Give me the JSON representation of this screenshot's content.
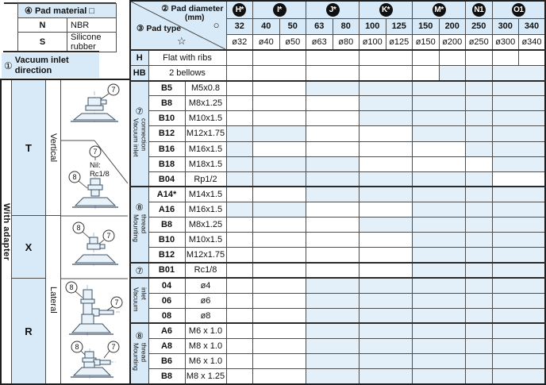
{
  "colors": {
    "header_bg": "#d8eaf7",
    "shaded_bg": "#e3f0f9",
    "dot": "#141414",
    "badge_bg": "#101010"
  },
  "pad_material": {
    "circled": "④",
    "title": "Pad material",
    "symbol": "□",
    "rows": [
      {
        "code": "N",
        "label": "NBR"
      },
      {
        "code": "S",
        "label": "Silicone rubber"
      }
    ]
  },
  "inlet_direction": {
    "circled": "①",
    "line1": "Vacuum inlet",
    "line2": "direction"
  },
  "header": {
    "diameter_circled": "②",
    "diameter_label": "Pad diameter",
    "diameter_unit": "(mm)",
    "diameter_symbol": "○",
    "type_circled": "③",
    "type_label": "Pad type",
    "type_symbol": "☆",
    "groups": [
      {
        "badge": "H*",
        "span": 1
      },
      {
        "badge": "I*",
        "span": 2
      },
      {
        "badge": "J*",
        "span": 2
      },
      {
        "badge": "K*",
        "span": 2
      },
      {
        "badge": "M*",
        "span": 2
      },
      {
        "badge": "N1",
        "span": 1
      },
      {
        "badge": "O1",
        "span": 2
      }
    ],
    "sizes": [
      "32",
      "40",
      "50",
      "63",
      "80",
      "100",
      "125",
      "150",
      "200",
      "250",
      "300",
      "340"
    ],
    "diameters": [
      "ø32",
      "ø40",
      "ø50",
      "ø63",
      "ø80",
      "ø100",
      "ø125",
      "ø150",
      "ø200",
      "ø250",
      "ø300",
      "ø340"
    ]
  },
  "pad_type_rows": [
    {
      "code": "H",
      "label": "Flat with ribs",
      "cells": [
        [
          1,
          "dot"
        ],
        [
          2,
          "dot"
        ],
        [
          2,
          "dot"
        ],
        [
          2,
          "dot"
        ],
        [
          1,
          "dot"
        ],
        [
          1,
          "dot"
        ],
        [
          1,
          "dot"
        ],
        [
          1,
          "dot"
        ],
        [
          1,
          "dot"
        ]
      ]
    },
    {
      "code": "HB",
      "label": "2 bellows",
      "cells": [
        [
          1,
          "dot"
        ],
        [
          2,
          "dot"
        ],
        [
          2,
          "dot"
        ],
        [
          2,
          "dot"
        ],
        [
          1,
          "dot"
        ],
        [
          1,
          "off"
        ],
        [
          1,
          "off"
        ],
        [
          2,
          "off"
        ]
      ]
    }
  ],
  "sections": [
    {
      "circled": "⑦",
      "label": "Vacuum inlet connection",
      "rows": [
        {
          "code": "B5",
          "spec": "M5x0.8",
          "cells": [
            [
              1,
              "dot"
            ],
            [
              2,
              "dot"
            ],
            [
              2,
              "off"
            ],
            [
              2,
              "off"
            ],
            [
              2,
              "off"
            ],
            [
              1,
              "off"
            ],
            [
              2,
              "off"
            ]
          ]
        },
        {
          "code": "B8",
          "spec": "M8x1.25",
          "cells": [
            [
              1,
              "dot"
            ],
            [
              2,
              "dot"
            ],
            [
              2,
              "dot"
            ],
            [
              2,
              "off"
            ],
            [
              2,
              "off"
            ],
            [
              1,
              "off"
            ],
            [
              2,
              "off"
            ]
          ]
        },
        {
          "code": "B10",
          "spec": "M10x1.5",
          "cells": [
            [
              1,
              "dot"
            ],
            [
              2,
              "dot"
            ],
            [
              2,
              "dot"
            ],
            [
              2,
              "off"
            ],
            [
              2,
              "off"
            ],
            [
              1,
              "off"
            ],
            [
              2,
              "off"
            ]
          ]
        },
        {
          "code": "B12",
          "spec": "M12x1.75",
          "cells": [
            [
              1,
              "off"
            ],
            [
              2,
              "off"
            ],
            [
              2,
              "dot"
            ],
            [
              2,
              "dot"
            ],
            [
              2,
              "off"
            ],
            [
              1,
              "off"
            ],
            [
              2,
              "off"
            ]
          ]
        },
        {
          "code": "B16",
          "spec": "M16x1.5",
          "cells": [
            [
              1,
              "off"
            ],
            [
              2,
              "dot"
            ],
            [
              2,
              "dot"
            ],
            [
              2,
              "dot"
            ],
            [
              2,
              "dot"
            ],
            [
              1,
              "off"
            ],
            [
              2,
              "off"
            ]
          ]
        },
        {
          "code": "B18",
          "spec": "M18x1.5",
          "cells": [
            [
              1,
              "off"
            ],
            [
              2,
              "off"
            ],
            [
              2,
              "off"
            ],
            [
              2,
              "dot"
            ],
            [
              2,
              "dot"
            ],
            [
              1,
              "dot"
            ],
            [
              2,
              "off"
            ]
          ]
        },
        {
          "code": "B04",
          "spec": "Rp1/2",
          "cells": [
            [
              1,
              "off"
            ],
            [
              2,
              "off"
            ],
            [
              2,
              "off"
            ],
            [
              2,
              "off"
            ],
            [
              2,
              "off"
            ],
            [
              1,
              "off"
            ],
            [
              2,
              "dot"
            ]
          ]
        }
      ]
    },
    {
      "circled": "⑧",
      "label": "Mounting thread",
      "rows": [
        {
          "code": "A14*",
          "spec": "M14x1.5",
          "cells": [
            [
              1,
              "dot"
            ],
            [
              2,
              "dot"
            ],
            [
              2,
              "off"
            ],
            [
              2,
              "off"
            ],
            [
              2,
              "off"
            ],
            [
              1,
              "off"
            ],
            [
              2,
              "off"
            ]
          ]
        },
        {
          "code": "A16",
          "spec": "M16x1.5",
          "cells": [
            [
              1,
              "off"
            ],
            [
              2,
              "off"
            ],
            [
              2,
              "dot"
            ],
            [
              2,
              "dot"
            ],
            [
              2,
              "off"
            ],
            [
              1,
              "off"
            ],
            [
              2,
              "off"
            ]
          ]
        },
        {
          "code": "B8",
          "spec": "M8x1.25",
          "cells": [
            [
              1,
              "dot"
            ],
            [
              2,
              "dot"
            ],
            [
              2,
              "dot"
            ],
            [
              2,
              "off"
            ],
            [
              2,
              "off"
            ],
            [
              1,
              "off"
            ],
            [
              2,
              "off"
            ]
          ]
        },
        {
          "code": "B10",
          "spec": "M10x1.5",
          "cells": [
            [
              1,
              "dot"
            ],
            [
              2,
              "dot"
            ],
            [
              2,
              "dot"
            ],
            [
              2,
              "dot"
            ],
            [
              2,
              "off"
            ],
            [
              1,
              "off"
            ],
            [
              2,
              "off"
            ]
          ]
        },
        {
          "code": "B12",
          "spec": "M12x1.75",
          "cells": [
            [
              1,
              "dot"
            ],
            [
              2,
              "dot"
            ],
            [
              2,
              "dot"
            ],
            [
              2,
              "dot"
            ],
            [
              2,
              "off"
            ],
            [
              1,
              "off"
            ],
            [
              2,
              "off"
            ]
          ]
        }
      ]
    },
    {
      "circled": "⑦",
      "label": "",
      "rows": [
        {
          "code": "B01",
          "spec": "Rc1/8",
          "cells": [
            [
              1,
              "dot"
            ],
            [
              2,
              "dot"
            ],
            [
              2,
              "dot"
            ],
            [
              2,
              "dot"
            ],
            [
              2,
              "off"
            ],
            [
              1,
              "off"
            ],
            [
              2,
              "off"
            ]
          ]
        }
      ]
    },
    {
      "circled": "",
      "label": "Vacuum inlet",
      "rows": [
        {
          "code": "04",
          "spec": "ø4",
          "cells": [
            [
              1,
              "dot"
            ],
            [
              2,
              "dot"
            ],
            [
              2,
              "off"
            ],
            [
              2,
              "off"
            ],
            [
              2,
              "off"
            ],
            [
              1,
              "off"
            ],
            [
              2,
              "off"
            ]
          ]
        },
        {
          "code": "06",
          "spec": "ø6",
          "cells": [
            [
              1,
              "dot"
            ],
            [
              2,
              "dot"
            ],
            [
              2,
              "off"
            ],
            [
              2,
              "off"
            ],
            [
              2,
              "off"
            ],
            [
              1,
              "off"
            ],
            [
              2,
              "off"
            ]
          ]
        },
        {
          "code": "08",
          "spec": "ø8",
          "cells": [
            [
              1,
              "dot"
            ],
            [
              2,
              "dot"
            ],
            [
              2,
              "off"
            ],
            [
              2,
              "off"
            ],
            [
              2,
              "off"
            ],
            [
              1,
              "off"
            ],
            [
              2,
              "off"
            ]
          ]
        }
      ]
    },
    {
      "circled": "⑧",
      "label": "Mounting thread",
      "rows": [
        {
          "code": "A6",
          "spec": "M6 x 1.0",
          "cells": [
            [
              1,
              "dot"
            ],
            [
              2,
              "dot"
            ],
            [
              2,
              "off"
            ],
            [
              2,
              "off"
            ],
            [
              2,
              "off"
            ],
            [
              1,
              "off"
            ],
            [
              2,
              "off"
            ]
          ]
        },
        {
          "code": "A8",
          "spec": "M8 x 1.0",
          "cells": [
            [
              1,
              "dot"
            ],
            [
              2,
              "dot"
            ],
            [
              2,
              "off"
            ],
            [
              2,
              "off"
            ],
            [
              2,
              "off"
            ],
            [
              1,
              "off"
            ],
            [
              2,
              "off"
            ]
          ]
        },
        {
          "code": "B6",
          "spec": "M6 x 1.0",
          "cells": [
            [
              1,
              "dot"
            ],
            [
              2,
              "dot"
            ],
            [
              2,
              "off"
            ],
            [
              2,
              "off"
            ],
            [
              2,
              "off"
            ],
            [
              1,
              "off"
            ],
            [
              2,
              "off"
            ]
          ]
        },
        {
          "code": "B8",
          "spec": "M8 x 1.25",
          "cells": [
            [
              1,
              "dot"
            ],
            [
              2,
              "dot"
            ],
            [
              2,
              "off"
            ],
            [
              2,
              "off"
            ],
            [
              2,
              "off"
            ],
            [
              1,
              "off"
            ],
            [
              2,
              "off"
            ]
          ]
        }
      ]
    }
  ],
  "left_panel": {
    "adapter_label": "With adapter",
    "letters": [
      {
        "code": "T"
      },
      {
        "code": "X"
      },
      {
        "code": "R"
      }
    ],
    "orientations": [
      {
        "label": "Vertical"
      },
      {
        "label": "Lateral"
      }
    ],
    "callout_seven": "7",
    "callout_eight": "8",
    "nil_line1": "Nil:",
    "nil_line2": "Rc1/8"
  }
}
